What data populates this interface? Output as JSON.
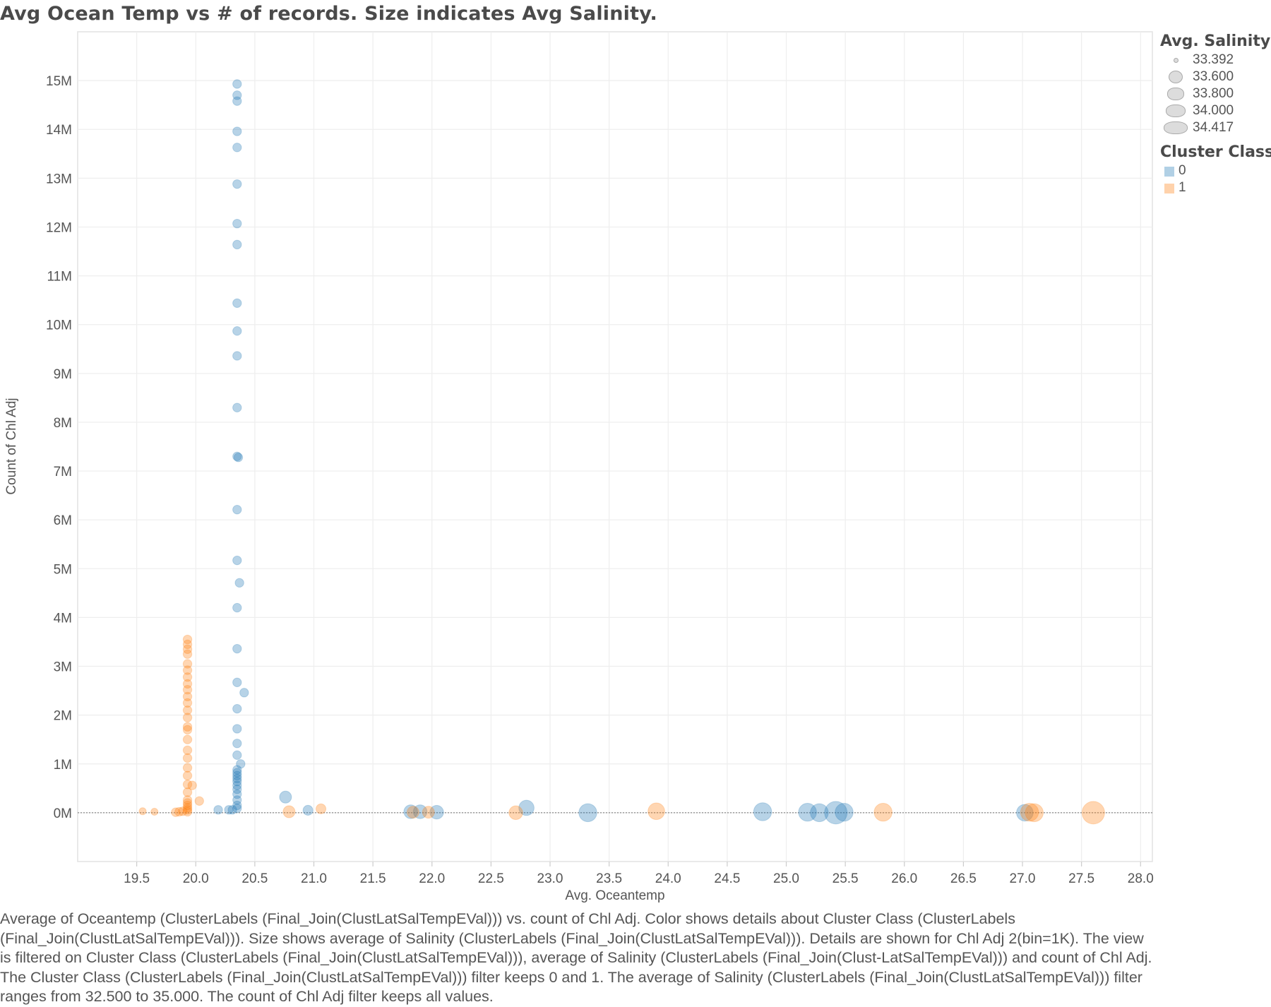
{
  "title": "Avg Ocean Temp vs # of records. Size indicates Avg Salinity.",
  "caption": "Average of Oceantemp (ClusterLabels (Final_Join(ClustLatSalTempEVal))) vs. count of Chl Adj.  Color shows details about Cluster Class (ClusterLabels (Final_Join(ClustLatSalTempEVal))).  Size shows average of Salinity (ClusterLabels (Final_Join(ClustLatSalTempEVal))).  Details are shown for Chl Adj 2(bin=1K). The view is filtered on Cluster Class (ClusterLabels (Final_Join(ClustLatSalTempEVal))), average of Salinity (ClusterLabels (Final_Join(Clust-LatSalTempEVal))) and count of Chl Adj. The Cluster Class (ClusterLabels (Final_Join(ClustLatSalTempEVal))) filter keeps 0 and 1. The average of Salinity (ClusterLabels (Final_Join(ClustLatSalTempEVal))) filter ranges from 32.500 to 35.000. The count of Chl Adj filter keeps all values.",
  "legend": {
    "size_title": "Avg. Salinity",
    "size_items": [
      "33.392",
      "33.600",
      "33.800",
      "34.000",
      "34.417"
    ],
    "color_title": "Cluster Class",
    "color_items": [
      {
        "label": "0",
        "color": "#1f77b4"
      },
      {
        "label": "1",
        "color": "#ff7f0e"
      }
    ]
  },
  "chart_data": {
    "type": "scatter",
    "title": "Avg Ocean Temp vs # of records. Size indicates Avg Salinity.",
    "xlabel": "Avg. Oceantemp",
    "ylabel": "Count of Chl Adj",
    "xlim": [
      19.0,
      28.1
    ],
    "ylim": [
      -1000000,
      16000000
    ],
    "x_ticks": [
      19.5,
      20.0,
      20.5,
      21.0,
      21.5,
      22.0,
      22.5,
      23.0,
      23.5,
      24.0,
      24.5,
      25.0,
      25.5,
      26.0,
      26.5,
      27.0,
      27.5,
      28.0
    ],
    "x_tick_labels": [
      "19.5",
      "20.0",
      "20.5",
      "21.0",
      "21.5",
      "22.0",
      "22.5",
      "23.0",
      "23.5",
      "24.0",
      "24.5",
      "25.0",
      "25.5",
      "26.0",
      "26.5",
      "27.0",
      "27.5",
      "28.0"
    ],
    "y_ticks": [
      0,
      1000000,
      2000000,
      3000000,
      4000000,
      5000000,
      6000000,
      7000000,
      8000000,
      9000000,
      10000000,
      11000000,
      12000000,
      13000000,
      14000000,
      15000000
    ],
    "y_tick_labels": [
      "0M",
      "1M",
      "2M",
      "3M",
      "4M",
      "5M",
      "6M",
      "7M",
      "8M",
      "9M",
      "10M",
      "11M",
      "12M",
      "13M",
      "14M",
      "15M"
    ],
    "grid": true,
    "legend_position": "right",
    "series": [
      {
        "name": "0",
        "color": "#1f77b4",
        "points": [
          {
            "x": 20.35,
            "y": 14930000,
            "size": 33.45
          },
          {
            "x": 20.35,
            "y": 14700000,
            "size": 33.45
          },
          {
            "x": 20.35,
            "y": 14580000,
            "size": 33.45
          },
          {
            "x": 20.35,
            "y": 13960000,
            "size": 33.45
          },
          {
            "x": 20.35,
            "y": 13630000,
            "size": 33.45
          },
          {
            "x": 20.35,
            "y": 12880000,
            "size": 33.45
          },
          {
            "x": 20.35,
            "y": 12070000,
            "size": 33.45
          },
          {
            "x": 20.35,
            "y": 11640000,
            "size": 33.45
          },
          {
            "x": 20.35,
            "y": 10440000,
            "size": 33.45
          },
          {
            "x": 20.35,
            "y": 9870000,
            "size": 33.45
          },
          {
            "x": 20.35,
            "y": 9360000,
            "size": 33.45
          },
          {
            "x": 20.35,
            "y": 8300000,
            "size": 33.45
          },
          {
            "x": 20.35,
            "y": 7300000,
            "size": 33.45
          },
          {
            "x": 20.36,
            "y": 7280000,
            "size": 33.45
          },
          {
            "x": 20.35,
            "y": 6210000,
            "size": 33.45
          },
          {
            "x": 20.35,
            "y": 5170000,
            "size": 33.45
          },
          {
            "x": 20.37,
            "y": 4710000,
            "size": 33.45
          },
          {
            "x": 20.35,
            "y": 4200000,
            "size": 33.45
          },
          {
            "x": 20.35,
            "y": 3360000,
            "size": 33.45
          },
          {
            "x": 20.35,
            "y": 2670000,
            "size": 33.45
          },
          {
            "x": 20.41,
            "y": 2460000,
            "size": 33.45
          },
          {
            "x": 20.35,
            "y": 2130000,
            "size": 33.45
          },
          {
            "x": 20.35,
            "y": 1720000,
            "size": 33.45
          },
          {
            "x": 20.35,
            "y": 1420000,
            "size": 33.45
          },
          {
            "x": 20.35,
            "y": 1180000,
            "size": 33.45
          },
          {
            "x": 20.38,
            "y": 1000000,
            "size": 33.45
          },
          {
            "x": 20.35,
            "y": 880000,
            "size": 33.45
          },
          {
            "x": 20.35,
            "y": 820000,
            "size": 33.45
          },
          {
            "x": 20.35,
            "y": 760000,
            "size": 33.45
          },
          {
            "x": 20.35,
            "y": 700000,
            "size": 33.45
          },
          {
            "x": 20.35,
            "y": 640000,
            "size": 33.45
          },
          {
            "x": 20.35,
            "y": 560000,
            "size": 33.45
          },
          {
            "x": 20.35,
            "y": 480000,
            "size": 33.45
          },
          {
            "x": 20.35,
            "y": 380000,
            "size": 33.45
          },
          {
            "x": 20.35,
            "y": 260000,
            "size": 33.45
          },
          {
            "x": 20.35,
            "y": 150000,
            "size": 33.45
          },
          {
            "x": 20.35,
            "y": 90000,
            "size": 33.45
          },
          {
            "x": 20.31,
            "y": 60000,
            "size": 33.45
          },
          {
            "x": 20.28,
            "y": 60000,
            "size": 33.45
          },
          {
            "x": 20.19,
            "y": 60000,
            "size": 33.45
          },
          {
            "x": 20.76,
            "y": 320000,
            "size": 33.6
          },
          {
            "x": 20.95,
            "y": 50000,
            "size": 33.5
          },
          {
            "x": 21.82,
            "y": 20000,
            "size": 33.7
          },
          {
            "x": 21.9,
            "y": 20000,
            "size": 33.7
          },
          {
            "x": 22.04,
            "y": 10000,
            "size": 33.7
          },
          {
            "x": 22.8,
            "y": 100000,
            "size": 33.8
          },
          {
            "x": 23.32,
            "y": 0,
            "size": 34.0
          },
          {
            "x": 24.8,
            "y": 20000,
            "size": 34.0
          },
          {
            "x": 25.18,
            "y": 10000,
            "size": 34.0
          },
          {
            "x": 25.28,
            "y": 0,
            "size": 34.0
          },
          {
            "x": 25.42,
            "y": 0,
            "size": 34.417
          },
          {
            "x": 25.49,
            "y": 10000,
            "size": 34.0
          },
          {
            "x": 27.02,
            "y": 0,
            "size": 33.9
          }
        ]
      },
      {
        "name": "1",
        "color": "#ff7f0e",
        "points": [
          {
            "x": 19.55,
            "y": 30000,
            "size": 33.392
          },
          {
            "x": 19.65,
            "y": 20000,
            "size": 33.392
          },
          {
            "x": 19.83,
            "y": 10000,
            "size": 33.45
          },
          {
            "x": 19.86,
            "y": 20000,
            "size": 33.45
          },
          {
            "x": 19.89,
            "y": 30000,
            "size": 33.45
          },
          {
            "x": 19.93,
            "y": 3550000,
            "size": 33.45
          },
          {
            "x": 19.93,
            "y": 3450000,
            "size": 33.45
          },
          {
            "x": 19.93,
            "y": 3350000,
            "size": 33.45
          },
          {
            "x": 19.93,
            "y": 3250000,
            "size": 33.45
          },
          {
            "x": 19.93,
            "y": 3050000,
            "size": 33.45
          },
          {
            "x": 19.93,
            "y": 2920000,
            "size": 33.45
          },
          {
            "x": 19.93,
            "y": 2780000,
            "size": 33.45
          },
          {
            "x": 19.93,
            "y": 2640000,
            "size": 33.45
          },
          {
            "x": 19.93,
            "y": 2520000,
            "size": 33.45
          },
          {
            "x": 19.93,
            "y": 2380000,
            "size": 33.45
          },
          {
            "x": 19.93,
            "y": 2250000,
            "size": 33.45
          },
          {
            "x": 19.93,
            "y": 2100000,
            "size": 33.45
          },
          {
            "x": 19.93,
            "y": 1950000,
            "size": 33.45
          },
          {
            "x": 19.93,
            "y": 1760000,
            "size": 33.45
          },
          {
            "x": 19.93,
            "y": 1700000,
            "size": 33.45
          },
          {
            "x": 19.93,
            "y": 1500000,
            "size": 33.45
          },
          {
            "x": 19.93,
            "y": 1280000,
            "size": 33.45
          },
          {
            "x": 19.93,
            "y": 1120000,
            "size": 33.45
          },
          {
            "x": 19.93,
            "y": 920000,
            "size": 33.45
          },
          {
            "x": 19.93,
            "y": 760000,
            "size": 33.45
          },
          {
            "x": 19.93,
            "y": 580000,
            "size": 33.45
          },
          {
            "x": 19.97,
            "y": 560000,
            "size": 33.45
          },
          {
            "x": 19.93,
            "y": 420000,
            "size": 33.45
          },
          {
            "x": 19.93,
            "y": 260000,
            "size": 33.45
          },
          {
            "x": 19.93,
            "y": 200000,
            "size": 33.45
          },
          {
            "x": 19.93,
            "y": 150000,
            "size": 33.45
          },
          {
            "x": 19.93,
            "y": 100000,
            "size": 33.45
          },
          {
            "x": 19.93,
            "y": 60000,
            "size": 33.45
          },
          {
            "x": 19.93,
            "y": 20000,
            "size": 33.45
          },
          {
            "x": 20.03,
            "y": 240000,
            "size": 33.45
          },
          {
            "x": 20.79,
            "y": 20000,
            "size": 33.6
          },
          {
            "x": 21.06,
            "y": 80000,
            "size": 33.5
          },
          {
            "x": 21.84,
            "y": 10000,
            "size": 33.6
          },
          {
            "x": 21.97,
            "y": 10000,
            "size": 33.6
          },
          {
            "x": 22.71,
            "y": 0,
            "size": 33.7
          },
          {
            "x": 23.9,
            "y": 30000,
            "size": 33.9
          },
          {
            "x": 25.82,
            "y": 10000,
            "size": 34.0
          },
          {
            "x": 27.06,
            "y": 10000,
            "size": 34.0
          },
          {
            "x": 27.1,
            "y": 0,
            "size": 34.0
          },
          {
            "x": 27.6,
            "y": 0,
            "size": 34.417
          }
        ]
      }
    ]
  }
}
